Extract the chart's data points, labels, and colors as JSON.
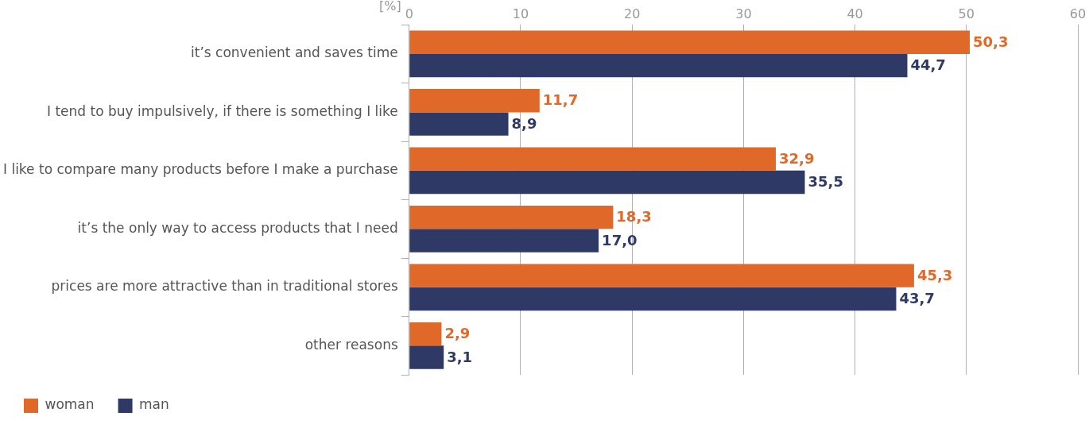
{
  "chart_data": {
    "type": "bar",
    "orientation": "horizontal",
    "xlabel": "[%]",
    "categories": [
      "it’s convenient and saves time",
      "I tend to buy impulsively, if there is something I like",
      "I like to compare many products before I make a purchase",
      "it’s the only way to access products that I need",
      "prices are more attractive than in traditional stores",
      "other reasons"
    ],
    "series": [
      {
        "name": "woman",
        "color": "#e0692a",
        "values": [
          50.3,
          11.7,
          32.9,
          18.3,
          45.3,
          2.9
        ],
        "value_labels": [
          "50,3",
          "11,7",
          "32,9",
          "18,3",
          "45,3",
          "2,9"
        ]
      },
      {
        "name": "man",
        "color": "#2e3966",
        "values": [
          44.7,
          8.9,
          35.5,
          17.0,
          43.7,
          3.1
        ],
        "value_labels": [
          "44,7",
          "8,9",
          "35,5",
          "17,0",
          "43,7",
          "3,1"
        ]
      }
    ],
    "xlim": [
      0,
      60
    ],
    "xticks": [
      0,
      10,
      20,
      30,
      40,
      50,
      60
    ],
    "grid": "x",
    "legend": "bottom"
  }
}
